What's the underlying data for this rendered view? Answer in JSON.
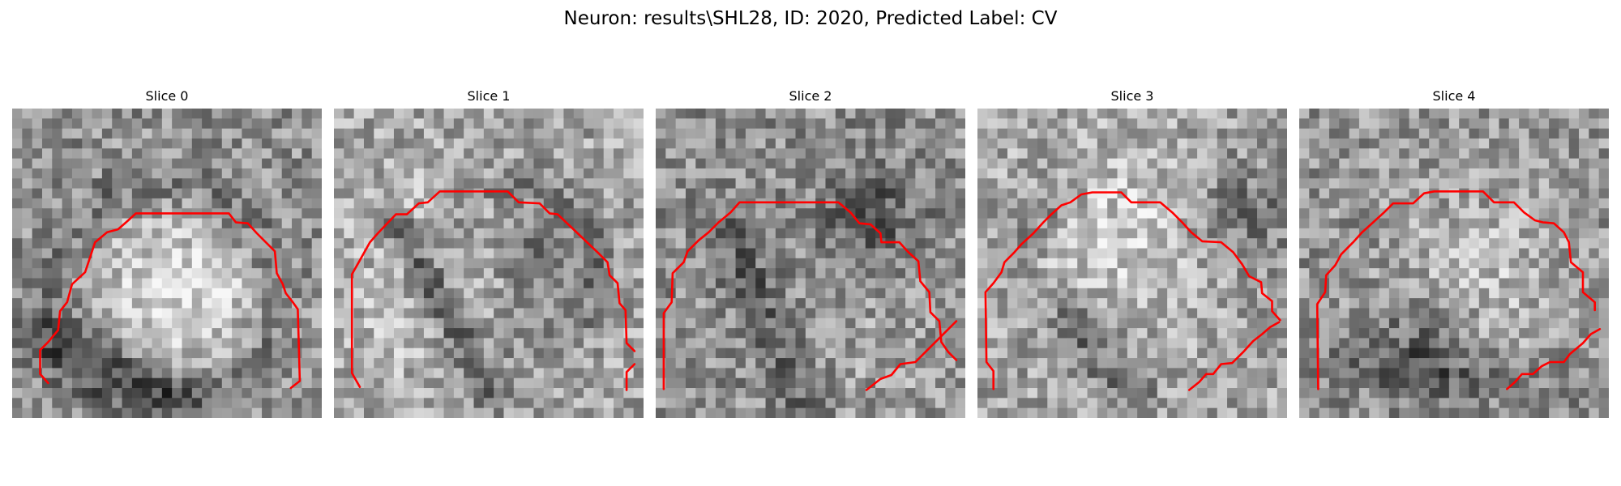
{
  "figure": {
    "title": "Neuron: results\\SHL28, ID: 2020, Predicted Label: CV",
    "background_color": "#ffffff",
    "contour_color": "#ff0000",
    "colormap": "grayscale",
    "slices": [
      {
        "title": "Slice 0"
      },
      {
        "title": "Slice 1"
      },
      {
        "title": "Slice 2"
      },
      {
        "title": "Slice 3"
      },
      {
        "title": "Slice 4"
      }
    ]
  }
}
